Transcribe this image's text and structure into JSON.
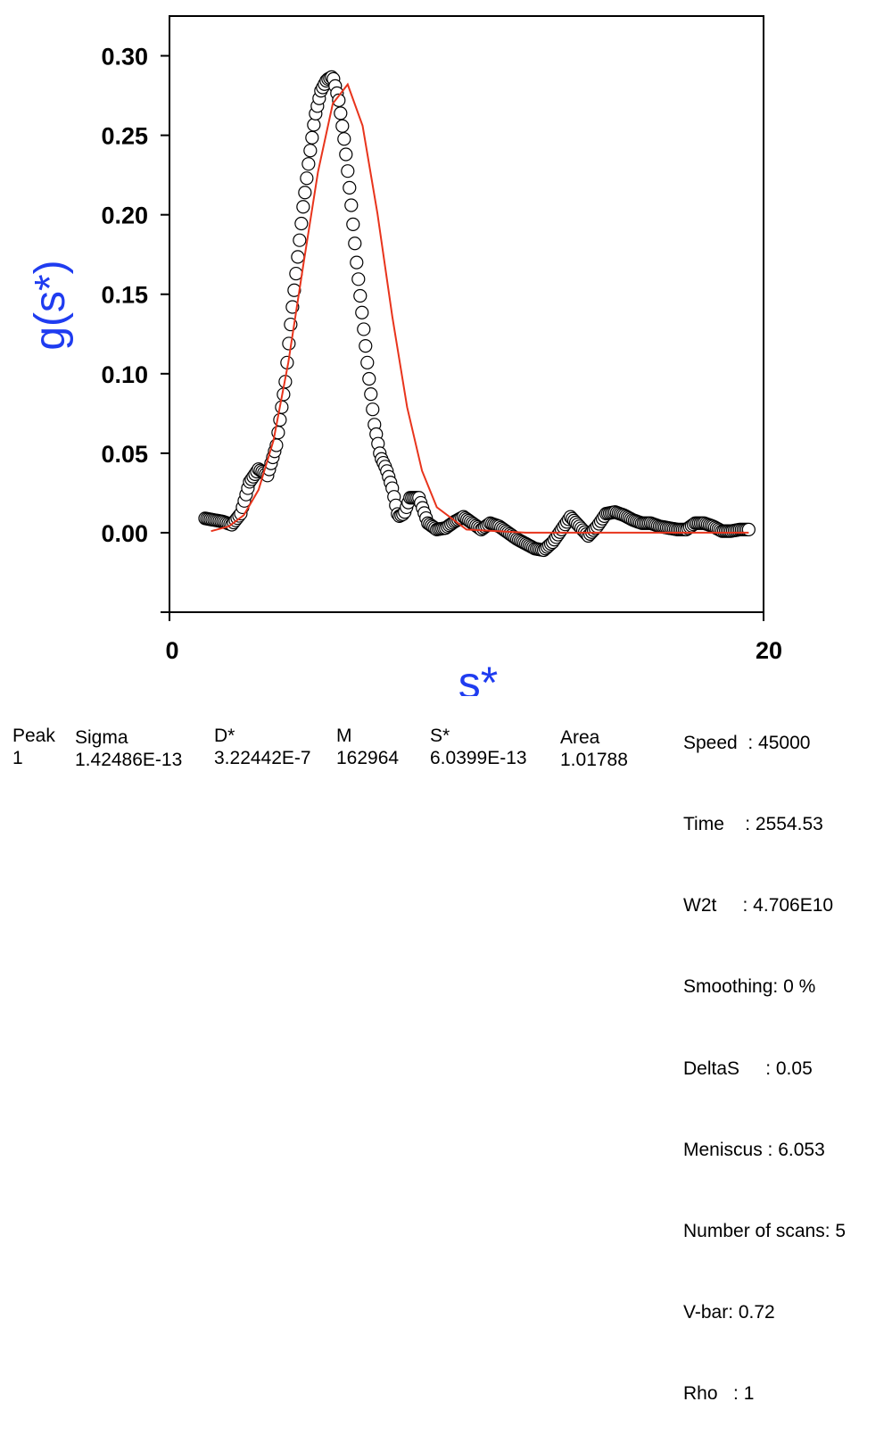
{
  "chart_data": {
    "type": "scatter",
    "xlabel": "s*",
    "ylabel": "g(s*)",
    "xlim": [
      0,
      20
    ],
    "ylim": [
      -0.05,
      0.325
    ],
    "x_ticks": [
      "0",
      "20"
    ],
    "y_ticks": [
      "0.00",
      "0.05",
      "0.10",
      "0.15",
      "0.20",
      "0.25",
      "0.30"
    ],
    "grid": false,
    "colors": {
      "axis_title": "#1f3cf0",
      "fit_line": "#e8341c",
      "markers": "#000000"
    },
    "series": [
      {
        "marker": "open-circle",
        "x": [
          1.2,
          1.5,
          1.8,
          2.1,
          2.4,
          2.7,
          3.0,
          3.3,
          3.6,
          3.9,
          4.1,
          4.3,
          4.5,
          4.7,
          4.9,
          5.1,
          5.3,
          5.5,
          5.7,
          5.9,
          6.1,
          6.3,
          6.5,
          6.7,
          6.9,
          7.1,
          7.3,
          7.5,
          7.7,
          7.9,
          8.1,
          8.4,
          8.7,
          9.0,
          9.3,
          9.6,
          9.9,
          10.2,
          10.5,
          10.8,
          11.1,
          11.4,
          11.7,
          12.0,
          12.3,
          12.6,
          12.9,
          13.2,
          13.5,
          13.8,
          14.1,
          14.4,
          14.7,
          15.0,
          15.3,
          15.6,
          15.9,
          16.2,
          16.5,
          16.8,
          17.1,
          17.4,
          17.7,
          18.0,
          18.3,
          18.6,
          18.9,
          19.2,
          19.5
        ],
        "y": [
          0.009,
          0.008,
          0.007,
          0.005,
          0.012,
          0.032,
          0.04,
          0.036,
          0.055,
          0.095,
          0.135,
          0.17,
          0.205,
          0.235,
          0.262,
          0.278,
          0.285,
          0.287,
          0.272,
          0.245,
          0.21,
          0.17,
          0.135,
          0.1,
          0.068,
          0.048,
          0.04,
          0.028,
          0.01,
          0.012,
          0.022,
          0.022,
          0.006,
          0.002,
          0.003,
          0.007,
          0.01,
          0.006,
          0.002,
          0.006,
          0.004,
          0.0,
          -0.004,
          -0.007,
          -0.01,
          -0.011,
          -0.006,
          0.002,
          0.01,
          0.004,
          -0.002,
          0.004,
          0.012,
          0.013,
          0.011,
          0.008,
          0.006,
          0.006,
          0.004,
          0.003,
          0.002,
          0.002,
          0.006,
          0.006,
          0.004,
          0.001,
          0.001,
          0.002,
          0.002
        ]
      },
      {
        "marker": "line",
        "x": [
          1.4,
          2.0,
          2.5,
          3.0,
          3.5,
          4.0,
          4.5,
          5.0,
          5.5,
          6.0,
          6.5,
          7.0,
          7.5,
          8.0,
          8.5,
          9.0,
          10.0,
          12.0,
          14.0,
          16.0,
          18.0,
          19.5
        ],
        "y": [
          0.001,
          0.004,
          0.011,
          0.027,
          0.058,
          0.107,
          0.168,
          0.227,
          0.27,
          0.282,
          0.256,
          0.201,
          0.136,
          0.079,
          0.039,
          0.016,
          0.002,
          0.0,
          0.0,
          0.0,
          0.0,
          0.0
        ]
      }
    ]
  },
  "peak_table": {
    "columns": [
      "Peak",
      "Sigma",
      "D*",
      "M",
      "S*",
      "Area"
    ],
    "row": [
      "1",
      "1.42486E-13",
      "3.22442E-7",
      "162964",
      "6.0399E-13",
      "1.01788"
    ]
  },
  "parameters": [
    "Speed  : 45000",
    "Time    : 2554.53",
    "W2t     : 4.706E10",
    "Smoothing: 0 %",
    "DeltaS     : 0.05",
    "Meniscus : 6.053",
    "Number of scans: 5",
    "V-bar: 0.72",
    "Rho   : 1"
  ]
}
